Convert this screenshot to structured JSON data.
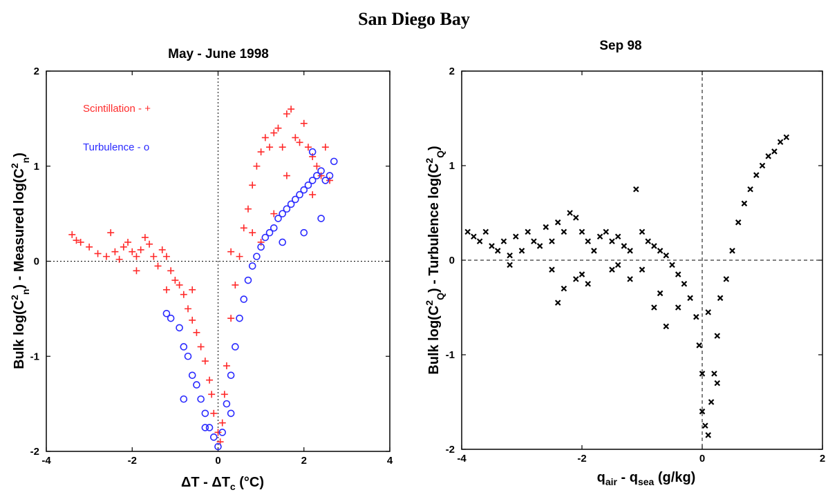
{
  "figure": {
    "title": "San Diego Bay"
  },
  "chart_data": [
    {
      "type": "scatter",
      "title": "May - June 1998",
      "xlabel": "ΔT - ΔTc (°C)",
      "ylabel": "Bulk log(Cn²) - Measured log(Cn²)",
      "xlim": [
        -4,
        4
      ],
      "ylim": [
        -2,
        2
      ],
      "x_ticks": [
        "-4",
        "-2",
        "0",
        "2",
        "4"
      ],
      "y_ticks": [
        "-2",
        "-1",
        "0",
        "1",
        "2"
      ],
      "reference_lines": {
        "x": 0,
        "y": 0,
        "style": "dotted"
      },
      "legend": [
        "Scintillation - +",
        "Turbulence - o"
      ],
      "series": [
        {
          "name": "Scintillation - +",
          "marker": "+",
          "color": "#ff2a2a",
          "points": [
            [
              -3.4,
              0.28
            ],
            [
              -3.3,
              0.22
            ],
            [
              -3.2,
              0.2
            ],
            [
              -3.0,
              0.15
            ],
            [
              -2.8,
              0.08
            ],
            [
              -2.6,
              0.05
            ],
            [
              -2.4,
              0.1
            ],
            [
              -2.3,
              0.02
            ],
            [
              -2.2,
              0.15
            ],
            [
              -2.1,
              0.2
            ],
            [
              -2.0,
              0.1
            ],
            [
              -1.9,
              0.05
            ],
            [
              -1.8,
              0.12
            ],
            [
              -1.7,
              0.25
            ],
            [
              -1.6,
              0.18
            ],
            [
              -1.5,
              0.05
            ],
            [
              -1.4,
              -0.05
            ],
            [
              -1.3,
              0.12
            ],
            [
              -1.2,
              0.05
            ],
            [
              -1.1,
              -0.1
            ],
            [
              -1.0,
              -0.2
            ],
            [
              -0.9,
              -0.25
            ],
            [
              -0.8,
              -0.35
            ],
            [
              -0.7,
              -0.5
            ],
            [
              -0.6,
              -0.62
            ],
            [
              -0.5,
              -0.75
            ],
            [
              -0.4,
              -0.9
            ],
            [
              -0.3,
              -1.05
            ],
            [
              -0.2,
              -1.25
            ],
            [
              -0.15,
              -1.4
            ],
            [
              -0.1,
              -1.6
            ],
            [
              0.0,
              -1.8
            ],
            [
              0.05,
              -1.9
            ],
            [
              0.1,
              -1.7
            ],
            [
              0.15,
              -1.4
            ],
            [
              0.2,
              -1.1
            ],
            [
              0.3,
              -0.6
            ],
            [
              0.4,
              -0.25
            ],
            [
              0.5,
              0.05
            ],
            [
              0.6,
              0.35
            ],
            [
              0.7,
              0.55
            ],
            [
              0.8,
              0.8
            ],
            [
              0.9,
              1.0
            ],
            [
              1.0,
              1.15
            ],
            [
              1.1,
              1.3
            ],
            [
              1.2,
              1.2
            ],
            [
              1.3,
              1.35
            ],
            [
              1.4,
              1.4
            ],
            [
              1.5,
              1.2
            ],
            [
              1.6,
              1.55
            ],
            [
              1.7,
              1.6
            ],
            [
              1.8,
              1.3
            ],
            [
              1.9,
              1.25
            ],
            [
              2.0,
              1.45
            ],
            [
              2.1,
              1.2
            ],
            [
              2.2,
              1.1
            ],
            [
              2.3,
              1.0
            ],
            [
              2.4,
              0.9
            ],
            [
              2.5,
              1.2
            ],
            [
              2.6,
              0.85
            ],
            [
              1.0,
              0.2
            ],
            [
              1.3,
              0.5
            ],
            [
              1.6,
              0.9
            ],
            [
              2.2,
              0.7
            ],
            [
              -2.5,
              0.3
            ],
            [
              -1.9,
              -0.1
            ],
            [
              -1.2,
              -0.3
            ],
            [
              -0.6,
              -0.3
            ],
            [
              0.3,
              0.1
            ],
            [
              0.8,
              0.3
            ]
          ]
        },
        {
          "name": "Turbulence - o",
          "marker": "o",
          "color": "#2a2aff",
          "points": [
            [
              -1.2,
              -0.55
            ],
            [
              -1.1,
              -0.6
            ],
            [
              -0.9,
              -0.7
            ],
            [
              -0.8,
              -0.9
            ],
            [
              -0.7,
              -1.0
            ],
            [
              -0.6,
              -1.2
            ],
            [
              -0.5,
              -1.3
            ],
            [
              -0.4,
              -1.45
            ],
            [
              -0.3,
              -1.6
            ],
            [
              -0.2,
              -1.75
            ],
            [
              -0.1,
              -1.85
            ],
            [
              0.0,
              -1.95
            ],
            [
              0.1,
              -1.8
            ],
            [
              0.2,
              -1.5
            ],
            [
              0.3,
              -1.2
            ],
            [
              0.4,
              -0.9
            ],
            [
              0.5,
              -0.6
            ],
            [
              0.6,
              -0.4
            ],
            [
              0.7,
              -0.2
            ],
            [
              0.8,
              -0.05
            ],
            [
              0.9,
              0.05
            ],
            [
              1.0,
              0.15
            ],
            [
              1.1,
              0.25
            ],
            [
              1.2,
              0.3
            ],
            [
              1.3,
              0.35
            ],
            [
              1.4,
              0.45
            ],
            [
              1.5,
              0.5
            ],
            [
              1.6,
              0.55
            ],
            [
              1.7,
              0.6
            ],
            [
              1.8,
              0.65
            ],
            [
              1.9,
              0.7
            ],
            [
              2.0,
              0.75
            ],
            [
              2.1,
              0.8
            ],
            [
              2.2,
              0.85
            ],
            [
              2.3,
              0.9
            ],
            [
              2.4,
              0.95
            ],
            [
              2.5,
              0.85
            ],
            [
              2.6,
              0.9
            ],
            [
              2.7,
              1.05
            ],
            [
              2.2,
              1.15
            ],
            [
              1.5,
              0.2
            ],
            [
              2.0,
              0.3
            ],
            [
              2.4,
              0.45
            ],
            [
              -0.8,
              -1.45
            ],
            [
              0.3,
              -1.6
            ],
            [
              -0.3,
              -1.75
            ]
          ]
        }
      ]
    },
    {
      "type": "scatter",
      "title": "Sep 98",
      "xlabel": "qair - qsea (g/kg)",
      "ylabel": "Bulk log(CQ²) - Turbulence log(CQ²)",
      "xlim": [
        -4,
        2
      ],
      "ylim": [
        -2,
        2
      ],
      "x_ticks": [
        "-4",
        "-2",
        "0",
        "2"
      ],
      "y_ticks": [
        "-2",
        "-1",
        "0",
        "1",
        "2"
      ],
      "reference_lines": {
        "x": 0,
        "y": 0,
        "style": "dashed"
      },
      "series": [
        {
          "marker": "x",
          "color": "#000000",
          "points": [
            [
              -3.9,
              0.3
            ],
            [
              -3.8,
              0.25
            ],
            [
              -3.7,
              0.2
            ],
            [
              -3.6,
              0.3
            ],
            [
              -3.5,
              0.15
            ],
            [
              -3.4,
              0.1
            ],
            [
              -3.3,
              0.2
            ],
            [
              -3.2,
              0.05
            ],
            [
              -3.1,
              0.25
            ],
            [
              -3.0,
              0.1
            ],
            [
              -2.9,
              0.3
            ],
            [
              -2.8,
              0.2
            ],
            [
              -2.7,
              0.15
            ],
            [
              -2.6,
              0.35
            ],
            [
              -2.5,
              0.2
            ],
            [
              -2.4,
              0.4
            ],
            [
              -2.3,
              0.3
            ],
            [
              -2.2,
              0.5
            ],
            [
              -2.1,
              0.45
            ],
            [
              -2.0,
              0.3
            ],
            [
              -1.9,
              0.2
            ],
            [
              -1.8,
              0.1
            ],
            [
              -1.7,
              0.25
            ],
            [
              -1.6,
              0.3
            ],
            [
              -1.5,
              0.2
            ],
            [
              -1.4,
              0.25
            ],
            [
              -1.3,
              0.15
            ],
            [
              -1.2,
              0.1
            ],
            [
              -1.1,
              0.75
            ],
            [
              -1.0,
              0.3
            ],
            [
              -0.9,
              0.2
            ],
            [
              -0.8,
              0.15
            ],
            [
              -0.7,
              0.1
            ],
            [
              -0.6,
              0.05
            ],
            [
              -0.5,
              -0.05
            ],
            [
              -0.4,
              -0.15
            ],
            [
              -0.3,
              -0.25
            ],
            [
              -0.2,
              -0.4
            ],
            [
              -0.1,
              -0.6
            ],
            [
              -0.05,
              -0.9
            ],
            [
              0.0,
              -1.2
            ],
            [
              0.0,
              -1.6
            ],
            [
              0.05,
              -1.75
            ],
            [
              0.1,
              -1.85
            ],
            [
              0.15,
              -1.5
            ],
            [
              0.2,
              -1.2
            ],
            [
              0.25,
              -0.8
            ],
            [
              0.3,
              -0.4
            ],
            [
              0.4,
              -0.2
            ],
            [
              0.5,
              0.1
            ],
            [
              0.6,
              0.4
            ],
            [
              0.7,
              0.6
            ],
            [
              0.8,
              0.75
            ],
            [
              0.9,
              0.9
            ],
            [
              1.0,
              1.0
            ],
            [
              1.1,
              1.1
            ],
            [
              1.2,
              1.15
            ],
            [
              1.3,
              1.25
            ],
            [
              1.4,
              1.3
            ],
            [
              -2.5,
              -0.1
            ],
            [
              -2.3,
              -0.3
            ],
            [
              -2.1,
              -0.2
            ],
            [
              -1.9,
              -0.25
            ],
            [
              -1.5,
              -0.1
            ],
            [
              -1.0,
              -0.1
            ],
            [
              -0.8,
              -0.5
            ],
            [
              -0.6,
              -0.7
            ],
            [
              -0.4,
              -0.5
            ],
            [
              -2.4,
              -0.45
            ],
            [
              -3.2,
              -0.05
            ],
            [
              -1.2,
              -0.2
            ],
            [
              0.1,
              -0.55
            ],
            [
              0.25,
              -1.3
            ],
            [
              -0.7,
              -0.35
            ],
            [
              -1.4,
              -0.05
            ],
            [
              -2.0,
              -0.15
            ]
          ]
        }
      ]
    }
  ]
}
